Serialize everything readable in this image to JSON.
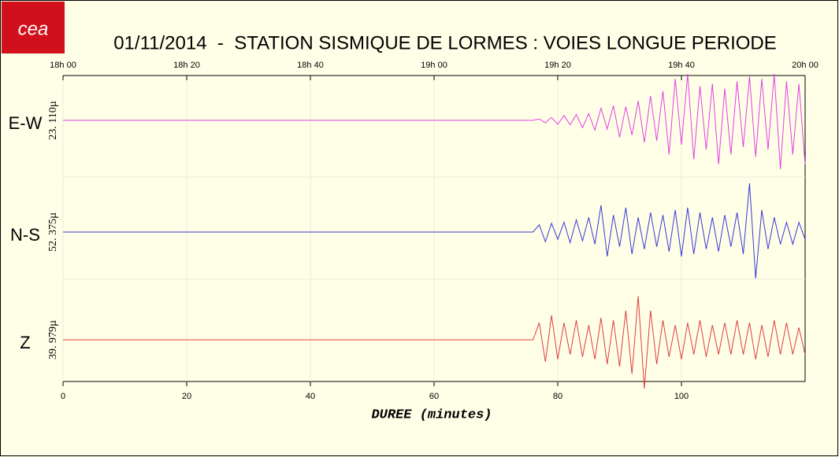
{
  "logo": "cea",
  "chart_data": {
    "type": "line",
    "title": "01/11/2014  -  STATION SISMIQUE DE LORMES : VOIES LONGUE PERIODE",
    "xlabel": "DUREE (minutes)",
    "xlim": [
      0,
      120
    ],
    "xticks": [
      0,
      20,
      40,
      60,
      80,
      100
    ],
    "x2ticks": [
      {
        "value": 0,
        "label": "18h 00"
      },
      {
        "value": 20,
        "label": "18h 20"
      },
      {
        "value": 40,
        "label": "18h 40"
      },
      {
        "value": 60,
        "label": "19h 00"
      },
      {
        "value": 80,
        "label": "19h 20"
      },
      {
        "value": 100,
        "label": "19h 40"
      },
      {
        "value": 120,
        "label": "20h 00"
      }
    ],
    "grid": true,
    "ylim": [
      -1,
      1
    ],
    "x": [
      0,
      76,
      77,
      78,
      79,
      80,
      81,
      82,
      83,
      84,
      85,
      86,
      87,
      88,
      89,
      90,
      91,
      92,
      93,
      94,
      95,
      96,
      97,
      98,
      99,
      100,
      101,
      102,
      103,
      104,
      105,
      106,
      107,
      108,
      109,
      110,
      111,
      112,
      113,
      114,
      115,
      116,
      117,
      118,
      119,
      120
    ],
    "series": [
      {
        "name": "E-W",
        "scale_label": "23. 110µ",
        "color": "#e040e0",
        "values": [
          0,
          0,
          0.03,
          -0.05,
          0.06,
          -0.08,
          0.1,
          -0.09,
          0.12,
          -0.15,
          0.14,
          -0.2,
          0.25,
          -0.18,
          0.3,
          -0.35,
          0.28,
          -0.3,
          0.4,
          -0.45,
          0.5,
          -0.42,
          0.6,
          -0.7,
          0.85,
          -0.5,
          0.95,
          -0.8,
          0.7,
          -0.6,
          0.75,
          -0.9,
          0.65,
          -0.7,
          0.8,
          -0.55,
          0.9,
          -0.75,
          0.85,
          -0.6,
          0.95,
          -1.0,
          0.8,
          -0.7,
          0.75,
          -0.9
        ]
      },
      {
        "name": "N-S",
        "scale_label": "52. 375µ",
        "color": "#3838d8",
        "values": [
          0,
          0,
          0.15,
          -0.2,
          0.18,
          -0.15,
          0.2,
          -0.22,
          0.25,
          -0.18,
          0.3,
          -0.25,
          0.55,
          -0.5,
          0.35,
          -0.3,
          0.5,
          -0.45,
          0.3,
          -0.35,
          0.4,
          -0.3,
          0.35,
          -0.4,
          0.45,
          -0.5,
          0.5,
          -0.45,
          0.4,
          -0.35,
          0.3,
          -0.4,
          0.35,
          -0.3,
          0.4,
          -0.45,
          1.0,
          -0.95,
          0.45,
          -0.35,
          0.3,
          -0.25,
          0.2,
          -0.25,
          0.2,
          -0.15
        ]
      },
      {
        "name": "Z",
        "scale_label": "39. 979µ",
        "color": "#e03c3c",
        "values": [
          0,
          0,
          0.35,
          -0.45,
          0.5,
          -0.4,
          0.35,
          -0.3,
          0.4,
          -0.35,
          0.3,
          -0.4,
          0.45,
          -0.5,
          0.4,
          -0.55,
          0.6,
          -0.7,
          0.9,
          -1.0,
          0.6,
          -0.5,
          0.4,
          -0.35,
          0.3,
          -0.4,
          0.35,
          -0.3,
          0.4,
          -0.35,
          0.3,
          -0.3,
          0.35,
          -0.3,
          0.4,
          -0.3,
          0.35,
          -0.4,
          0.3,
          -0.35,
          0.4,
          -0.3,
          0.35,
          -0.3,
          0.25,
          -0.3
        ]
      }
    ]
  }
}
